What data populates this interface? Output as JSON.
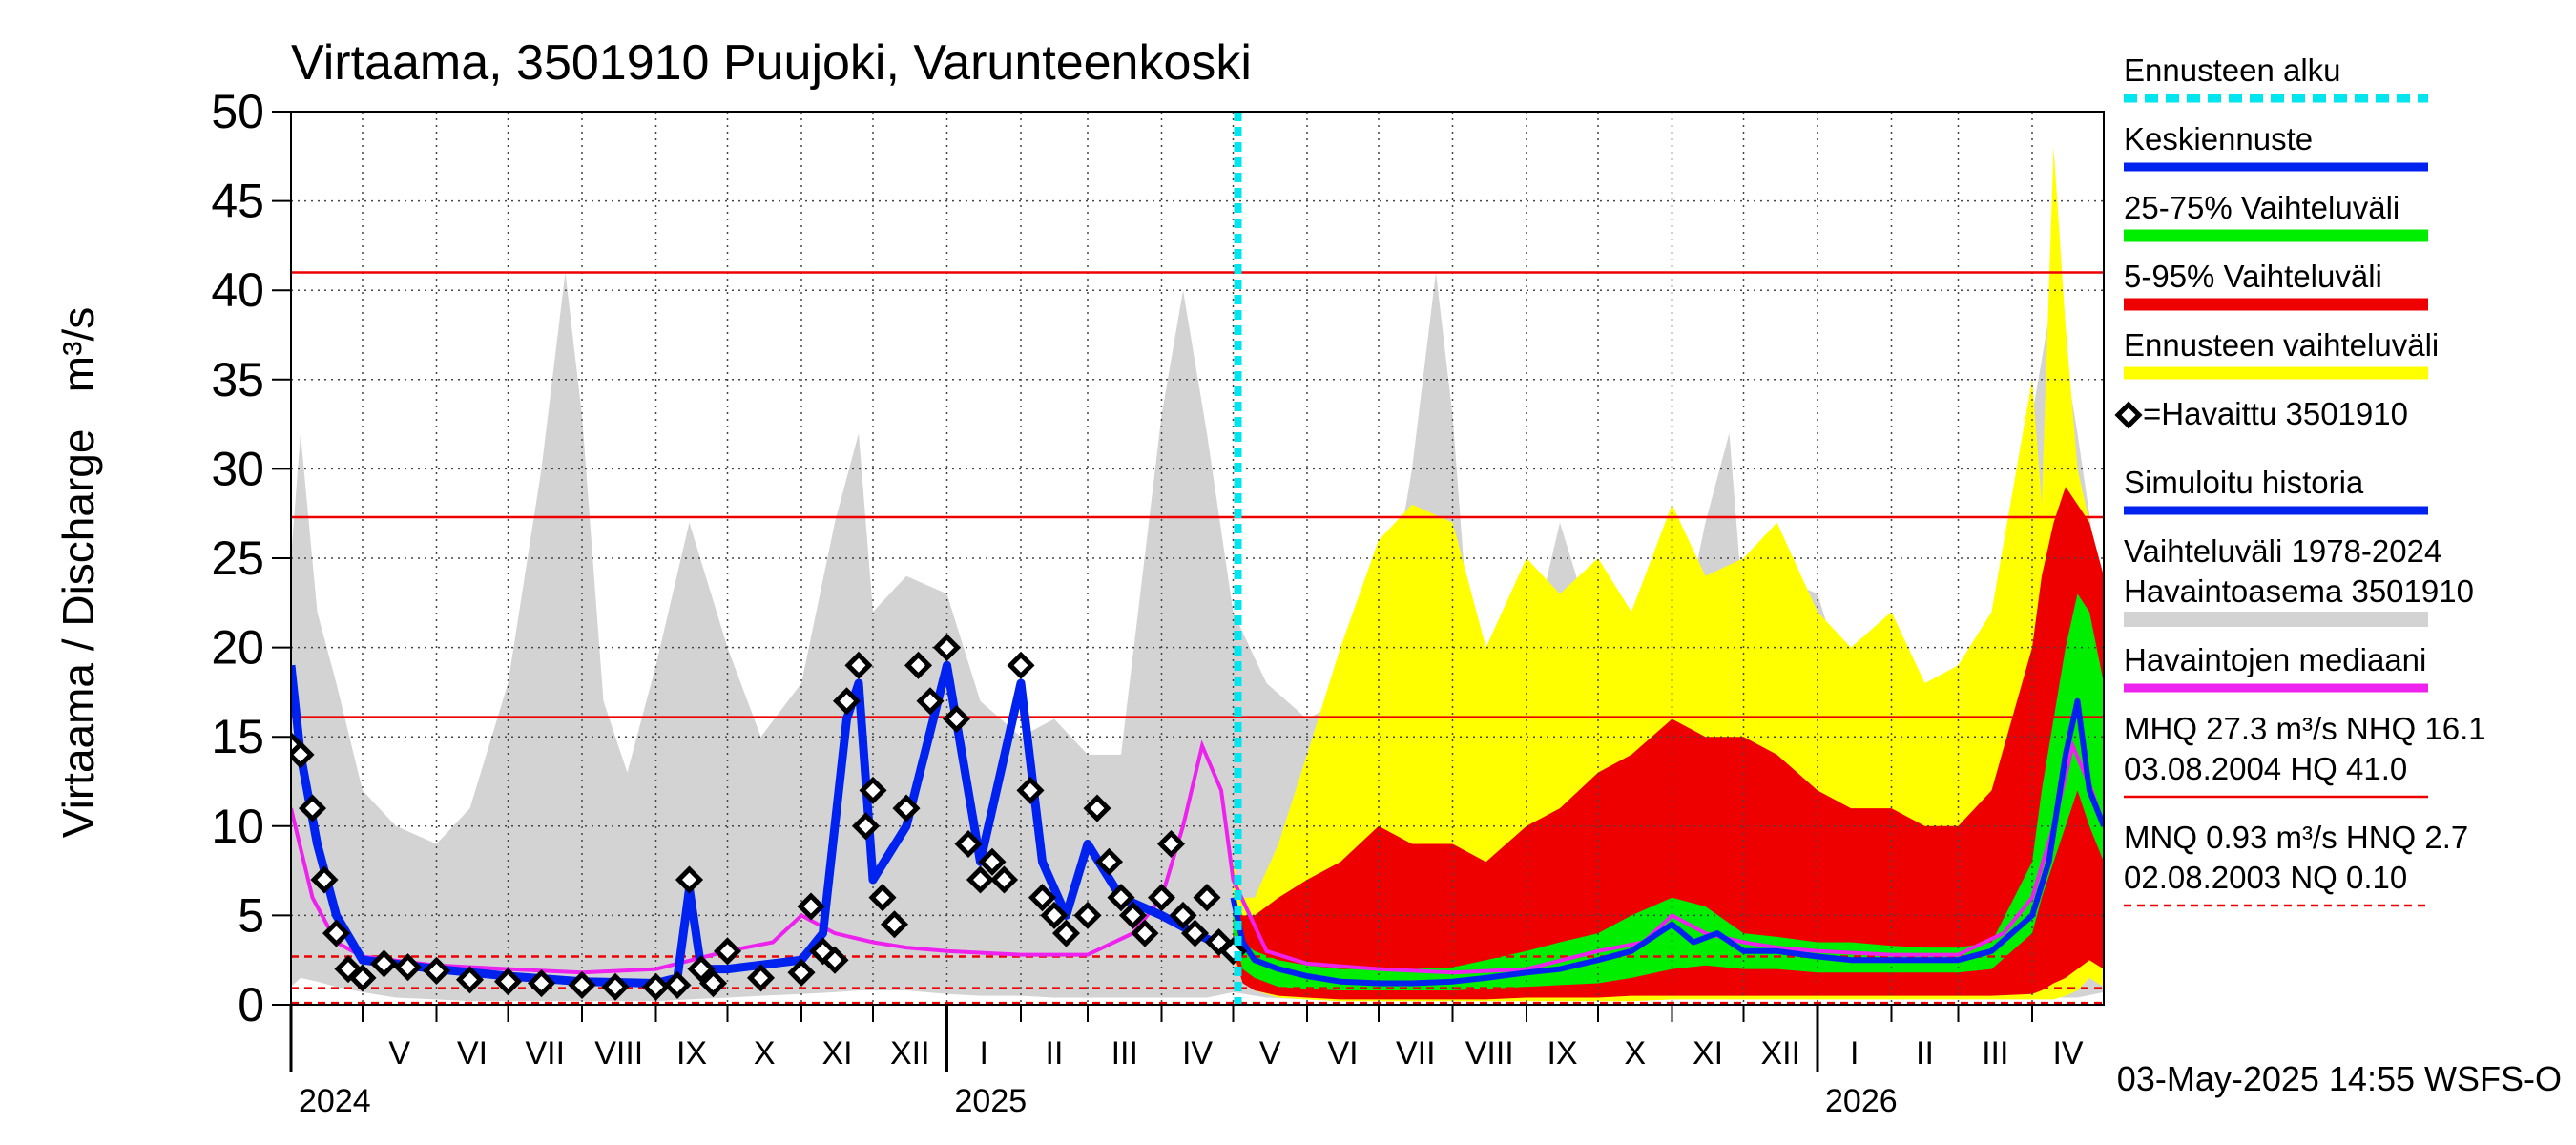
{
  "chart_data": {
    "type": "area",
    "title": "Virtaama, 3501910 Puujoki, Varunteenkoski",
    "ylabel": "Virtaama / Discharge   m³/s",
    "xlabel": "",
    "ylim": [
      0,
      50
    ],
    "yticks": [
      0,
      5,
      10,
      15,
      20,
      25,
      30,
      35,
      40,
      45,
      50
    ],
    "grid": true,
    "legend_position": "right",
    "x_range": [
      "2024-04-01",
      "2026-05-01"
    ],
    "forecast_start": "2025-05-03",
    "months": [
      {
        "label": "V",
        "start": "2024-05-01"
      },
      {
        "label": "VI",
        "start": "2024-06-01"
      },
      {
        "label": "VII",
        "start": "2024-07-01"
      },
      {
        "label": "VIII",
        "start": "2024-08-01"
      },
      {
        "label": "IX",
        "start": "2024-09-01"
      },
      {
        "label": "X",
        "start": "2024-10-01"
      },
      {
        "label": "XI",
        "start": "2024-11-01"
      },
      {
        "label": "XII",
        "start": "2024-12-01"
      },
      {
        "label": "I",
        "start": "2025-01-01"
      },
      {
        "label": "II",
        "start": "2025-02-01"
      },
      {
        "label": "III",
        "start": "2025-03-01"
      },
      {
        "label": "IV",
        "start": "2025-04-01"
      },
      {
        "label": "V",
        "start": "2025-05-01"
      },
      {
        "label": "VI",
        "start": "2025-06-01"
      },
      {
        "label": "VII",
        "start": "2025-07-01"
      },
      {
        "label": "VIII",
        "start": "2025-08-01"
      },
      {
        "label": "IX",
        "start": "2025-09-01"
      },
      {
        "label": "X",
        "start": "2025-10-01"
      },
      {
        "label": "XI",
        "start": "2025-11-01"
      },
      {
        "label": "XII",
        "start": "2025-12-01"
      },
      {
        "label": "I",
        "start": "2026-01-01"
      },
      {
        "label": "II",
        "start": "2026-02-01"
      },
      {
        "label": "III",
        "start": "2026-03-01"
      },
      {
        "label": "IV",
        "start": "2026-04-01"
      }
    ],
    "years": [
      {
        "label": "2024",
        "start": "2024-04-01"
      },
      {
        "label": "2025",
        "start": "2025-01-01"
      },
      {
        "label": "2026",
        "start": "2026-01-01"
      }
    ],
    "reference_lines": [
      {
        "name": "HQ",
        "value": 41.0,
        "style": "solid"
      },
      {
        "name": "MHQ",
        "value": 27.3,
        "style": "solid"
      },
      {
        "name": "NHQ",
        "value": 16.1,
        "style": "solid"
      },
      {
        "name": "HNQ",
        "value": 2.7,
        "style": "dashed"
      },
      {
        "name": "MNQ",
        "value": 0.93,
        "style": "dashed"
      },
      {
        "name": "NQ",
        "value": 0.1,
        "style": "dashed"
      }
    ],
    "legend": [
      {
        "label": "Ennusteen alku",
        "color": "#00e5ee",
        "style": "dashed"
      },
      {
        "label": "Keskiennuste",
        "color": "#0022ee",
        "style": "line"
      },
      {
        "label": "25-75% Vaihteluväli",
        "color": "#00ee00",
        "style": "band"
      },
      {
        "label": "5-95% Vaihteluväli",
        "color": "#ee0000",
        "style": "band"
      },
      {
        "label": "Ennusteen vaihteluväli",
        "color": "#ffff00",
        "style": "band"
      },
      {
        "label": "=Havaittu 3501910",
        "color": "#000000",
        "style": "marker"
      },
      {
        "label": "Simuloitu historia",
        "color": "#0022ee",
        "style": "line"
      },
      {
        "label": "Vaihteluväli 1978-2024",
        "label2": " Havaintoasema 3501910",
        "color": "#d3d3d3",
        "style": "band"
      },
      {
        "label": "Havaintojen mediaani",
        "color": "#ee22ee",
        "style": "line"
      },
      {
        "label": "MHQ 27.3 m³/s NHQ 16.1",
        "label2": "03.08.2004 HQ 41.0",
        "color": "#ee0000",
        "style": "ref"
      },
      {
        "label": "MNQ 0.93 m³/s HNQ  2.7",
        "label2": "02.08.2003 NQ 0.10",
        "color": "#ee0000",
        "style": "refdash"
      }
    ],
    "footer": "03-May-2025 14:55 WSFS-O",
    "history_range": {
      "x": [
        "2024-04-01",
        "2024-04-05",
        "2024-04-12",
        "2024-04-20",
        "2024-05-01",
        "2024-05-15",
        "2024-06-01",
        "2024-06-15",
        "2024-07-01",
        "2024-07-15",
        "2024-07-25",
        "2024-08-01",
        "2024-08-10",
        "2024-08-20",
        "2024-09-01",
        "2024-09-15",
        "2024-10-01",
        "2024-10-15",
        "2024-11-01",
        "2024-11-15",
        "2024-11-25",
        "2024-12-01",
        "2024-12-15",
        "2025-01-01",
        "2025-01-15",
        "2025-02-01",
        "2025-02-15",
        "2025-03-01",
        "2025-03-15",
        "2025-04-01",
        "2025-04-10",
        "2025-04-20",
        "2025-05-01",
        "2025-05-15",
        "2025-06-01",
        "2025-06-15",
        "2025-07-01",
        "2025-07-15",
        "2025-07-25",
        "2025-08-01",
        "2025-08-10",
        "2025-08-20",
        "2025-09-01",
        "2025-09-15",
        "2025-10-01",
        "2025-10-15",
        "2025-11-01",
        "2025-11-15",
        "2025-11-25",
        "2025-12-01",
        "2025-12-15",
        "2026-01-01",
        "2026-01-15",
        "2026-02-01",
        "2026-02-15",
        "2026-03-01",
        "2026-03-15",
        "2026-04-01",
        "2026-04-10",
        "2026-04-20",
        "2026-05-01"
      ],
      "lower": [
        1.0,
        1.5,
        1.3,
        1.0,
        0.7,
        0.4,
        0.3,
        0.2,
        0.2,
        0.2,
        0.2,
        0.2,
        0.2,
        0.2,
        0.2,
        0.3,
        0.4,
        0.5,
        0.6,
        0.7,
        0.8,
        0.8,
        0.8,
        0.6,
        0.5,
        0.5,
        0.4,
        0.4,
        0.4,
        0.4,
        0.4,
        0.4,
        0.7,
        0.4,
        0.3,
        0.2,
        0.2,
        0.2,
        0.2,
        0.2,
        0.2,
        0.2,
        0.2,
        0.3,
        0.4,
        0.5,
        0.6,
        0.7,
        0.8,
        0.8,
        0.8,
        0.6,
        0.5,
        0.5,
        0.4,
        0.4,
        0.4,
        0.4,
        0.4,
        0.4,
        0.7
      ],
      "upper": [
        25,
        32,
        22,
        18,
        12,
        10,
        9,
        11,
        18,
        30,
        41,
        33,
        17,
        13,
        19,
        27,
        20,
        15,
        18,
        27,
        32,
        22,
        24,
        23,
        17,
        15,
        16,
        14,
        14,
        33,
        40,
        32,
        22,
        18,
        16,
        17,
        19,
        30,
        41,
        33,
        17,
        13,
        19,
        27,
        20,
        15,
        18,
        27,
        32,
        22,
        24,
        23,
        17,
        15,
        16,
        14,
        14,
        33,
        40,
        32,
        22
      ]
    },
    "observed": {
      "x": [
        "2024-04-01",
        "2024-04-05",
        "2024-04-10",
        "2024-04-15",
        "2024-04-20",
        "2024-04-25",
        "2024-05-01",
        "2024-05-10",
        "2024-05-20",
        "2024-06-01",
        "2024-06-15",
        "2024-07-01",
        "2024-07-15",
        "2024-08-01",
        "2024-08-15",
        "2024-09-01",
        "2024-09-10",
        "2024-09-15",
        "2024-09-20",
        "2024-09-25",
        "2024-10-01",
        "2024-10-15",
        "2024-11-01",
        "2024-11-05",
        "2024-11-10",
        "2024-11-15",
        "2024-11-20",
        "2024-11-25",
        "2024-11-28",
        "2024-12-01",
        "2024-12-05",
        "2024-12-10",
        "2024-12-15",
        "2024-12-20",
        "2024-12-25",
        "2025-01-01",
        "2025-01-05",
        "2025-01-10",
        "2025-01-15",
        "2025-01-20",
        "2025-01-25",
        "2025-02-01",
        "2025-02-05",
        "2025-02-10",
        "2025-02-15",
        "2025-02-20",
        "2025-03-01",
        "2025-03-05",
        "2025-03-10",
        "2025-03-15",
        "2025-03-20",
        "2025-03-25",
        "2025-04-01",
        "2025-04-05",
        "2025-04-10",
        "2025-04-15",
        "2025-04-20",
        "2025-04-25",
        "2025-05-01"
      ],
      "values": [
        14.5,
        14,
        11,
        7,
        4,
        2,
        1.5,
        2.3,
        2.1,
        1.9,
        1.4,
        1.3,
        1.2,
        1.1,
        1.0,
        1.0,
        1.1,
        7,
        2,
        1.2,
        3,
        1.5,
        1.8,
        5.5,
        3,
        2.5,
        17,
        19,
        10,
        12,
        6,
        4.5,
        11,
        19,
        17,
        20,
        16,
        9,
        7,
        8,
        7,
        19,
        12,
        6,
        5,
        4,
        5,
        11,
        8,
        6,
        5,
        4,
        6,
        9,
        5,
        4,
        6,
        3.5,
        3
      ]
    },
    "simulated_history": {
      "x": [
        "2024-04-01",
        "2024-04-05",
        "2024-04-12",
        "2024-04-20",
        "2024-05-01",
        "2024-06-01",
        "2024-07-01",
        "2024-08-01",
        "2024-09-01",
        "2024-09-10",
        "2024-09-15",
        "2024-09-20",
        "2024-10-01",
        "2024-11-01",
        "2024-11-10",
        "2024-11-20",
        "2024-11-25",
        "2024-12-01",
        "2024-12-15",
        "2025-01-01",
        "2025-01-15",
        "2025-02-01",
        "2025-02-10",
        "2025-02-20",
        "2025-03-01",
        "2025-03-15",
        "2025-04-01",
        "2025-04-15",
        "2025-05-01"
      ],
      "values": [
        19,
        14,
        9,
        5,
        2.5,
        2.0,
        1.6,
        1.3,
        1.2,
        1.5,
        6.5,
        2,
        2.0,
        2.5,
        4,
        16,
        18,
        7,
        10,
        19,
        8,
        18,
        8,
        5,
        9,
        6,
        5,
        4,
        3
      ]
    },
    "median": {
      "x": [
        "2024-04-01",
        "2024-04-10",
        "2024-04-20",
        "2024-05-01",
        "2024-06-01",
        "2024-07-01",
        "2024-08-01",
        "2024-09-01",
        "2024-10-01",
        "2024-10-20",
        "2024-11-01",
        "2024-11-15",
        "2024-12-01",
        "2024-12-15",
        "2025-01-01",
        "2025-02-01",
        "2025-03-01",
        "2025-03-20",
        "2025-04-01",
        "2025-04-10",
        "2025-04-18",
        "2025-04-26",
        "2025-05-01",
        "2025-05-15",
        "2025-06-01",
        "2025-07-01",
        "2025-08-01",
        "2025-09-01",
        "2025-10-01",
        "2025-10-20",
        "2025-11-01",
        "2025-11-15",
        "2025-12-01",
        "2025-12-15",
        "2026-01-01",
        "2026-02-01",
        "2026-03-01",
        "2026-03-20",
        "2026-04-01",
        "2026-04-10",
        "2026-04-18",
        "2026-04-26",
        "2026-05-01"
      ],
      "values": [
        11,
        6,
        3.5,
        2.7,
        2.2,
        2.0,
        1.8,
        2.0,
        3.0,
        3.5,
        5,
        4,
        3.5,
        3.2,
        3.0,
        2.8,
        2.8,
        4,
        6,
        10,
        14.5,
        12,
        7,
        3,
        2.3,
        2.0,
        1.8,
        2.0,
        3.0,
        3.5,
        5,
        4,
        3.5,
        3.2,
        3.0,
        2.8,
        2.8,
        4,
        6,
        10,
        14.5,
        12,
        10
      ]
    },
    "forecast_range": {
      "x": [
        "2025-05-01",
        "2025-05-05",
        "2025-05-10",
        "2025-05-20",
        "2025-06-01",
        "2025-06-15",
        "2025-07-01",
        "2025-07-15",
        "2025-08-01",
        "2025-08-15",
        "2025-09-01",
        "2025-09-15",
        "2025-10-01",
        "2025-10-15",
        "2025-11-01",
        "2025-11-15",
        "2025-12-01",
        "2025-12-15",
        "2026-01-01",
        "2026-01-15",
        "2026-02-01",
        "2026-02-15",
        "2026-03-01",
        "2026-03-15",
        "2026-04-01",
        "2026-04-05",
        "2026-04-10",
        "2026-04-15",
        "2026-04-20",
        "2026-04-25",
        "2026-05-01"
      ],
      "lower": [
        2.5,
        1.5,
        0.8,
        0.4,
        0.3,
        0.2,
        0.2,
        0.2,
        0.2,
        0.2,
        0.2,
        0.2,
        0.2,
        0.2,
        0.3,
        0.3,
        0.3,
        0.3,
        0.3,
        0.3,
        0.3,
        0.3,
        0.3,
        0.3,
        0.3,
        0.3,
        0.3,
        0.5,
        0.8,
        1.5,
        1.0
      ],
      "upper": [
        8,
        6,
        6,
        9,
        14,
        20,
        26,
        28,
        27,
        20,
        25,
        23,
        25,
        22,
        28,
        24,
        25,
        27,
        22,
        20,
        22,
        18,
        19,
        22,
        35,
        28,
        48,
        38,
        30,
        27,
        22
      ]
    },
    "forecast_p5_95": {
      "x": [
        "2025-05-01",
        "2025-05-05",
        "2025-05-10",
        "2025-05-20",
        "2025-06-01",
        "2025-06-15",
        "2025-07-01",
        "2025-07-15",
        "2025-08-01",
        "2025-08-15",
        "2025-09-01",
        "2025-09-15",
        "2025-10-01",
        "2025-10-15",
        "2025-11-01",
        "2025-11-15",
        "2025-12-01",
        "2025-12-15",
        "2026-01-01",
        "2026-01-15",
        "2026-02-01",
        "2026-02-15",
        "2026-03-01",
        "2026-03-15",
        "2026-04-01",
        "2026-04-05",
        "2026-04-10",
        "2026-04-15",
        "2026-04-20",
        "2026-04-25",
        "2026-05-01"
      ],
      "lower": [
        3,
        1.2,
        0.8,
        0.5,
        0.4,
        0.3,
        0.3,
        0.3,
        0.3,
        0.3,
        0.4,
        0.4,
        0.4,
        0.5,
        0.5,
        0.5,
        0.5,
        0.5,
        0.5,
        0.5,
        0.5,
        0.5,
        0.5,
        0.5,
        0.6,
        0.8,
        1.2,
        1.5,
        2.0,
        2.5,
        2.0
      ],
      "upper": [
        6,
        5,
        5,
        6,
        7,
        8,
        10,
        9,
        9,
        8,
        10,
        11,
        13,
        14,
        16,
        15,
        15,
        14,
        12,
        11,
        11,
        10,
        10,
        12,
        20,
        24,
        27,
        29,
        28,
        27,
        24
      ]
    },
    "forecast_p25_75": {
      "x": [
        "2025-05-01",
        "2025-05-05",
        "2025-05-10",
        "2025-05-20",
        "2025-06-01",
        "2025-06-15",
        "2025-07-01",
        "2025-07-15",
        "2025-08-01",
        "2025-08-15",
        "2025-09-01",
        "2025-09-15",
        "2025-10-01",
        "2025-10-15",
        "2025-11-01",
        "2025-11-15",
        "2025-12-01",
        "2025-12-15",
        "2026-01-01",
        "2026-01-15",
        "2026-02-01",
        "2026-02-15",
        "2026-03-01",
        "2026-03-15",
        "2026-04-01",
        "2026-04-05",
        "2026-04-10",
        "2026-04-15",
        "2026-04-20",
        "2026-04-25",
        "2026-05-01"
      ],
      "lower": [
        4,
        2,
        1.5,
        1.0,
        0.9,
        0.8,
        0.8,
        0.8,
        0.8,
        0.9,
        1.0,
        1.1,
        1.2,
        1.5,
        2.0,
        2.2,
        2.0,
        2.0,
        1.8,
        1.8,
        1.8,
        1.8,
        1.8,
        2.0,
        4,
        6,
        8,
        10,
        12,
        10,
        8
      ],
      "upper": [
        5.5,
        3.5,
        3,
        2.5,
        2.2,
        2.0,
        2.0,
        2.0,
        2.1,
        2.5,
        3.0,
        3.5,
        4.0,
        5.0,
        6.0,
        5.5,
        4.0,
        3.8,
        3.5,
        3.5,
        3.3,
        3.2,
        3.2,
        3.5,
        8,
        12,
        16,
        20,
        23,
        22,
        18
      ]
    },
    "forecast_mean": {
      "x": [
        "2025-05-01",
        "2025-05-05",
        "2025-05-10",
        "2025-05-20",
        "2025-06-01",
        "2025-06-15",
        "2025-07-01",
        "2025-07-15",
        "2025-08-01",
        "2025-08-15",
        "2025-09-01",
        "2025-09-15",
        "2025-10-01",
        "2025-10-15",
        "2025-11-01",
        "2025-11-10",
        "2025-11-20",
        "2025-12-01",
        "2025-12-15",
        "2026-01-01",
        "2026-01-15",
        "2026-02-01",
        "2026-02-15",
        "2026-03-01",
        "2026-03-15",
        "2026-04-01",
        "2026-04-08",
        "2026-04-15",
        "2026-04-20",
        "2026-04-25",
        "2026-05-01"
      ],
      "values": [
        6,
        3.5,
        2.5,
        2.0,
        1.6,
        1.3,
        1.2,
        1.2,
        1.3,
        1.5,
        1.8,
        2.0,
        2.5,
        3.0,
        4.5,
        3.5,
        4.0,
        3.0,
        3.0,
        2.7,
        2.5,
        2.5,
        2.5,
        2.5,
        3.0,
        5,
        8,
        14,
        17,
        12,
        10
      ]
    }
  }
}
